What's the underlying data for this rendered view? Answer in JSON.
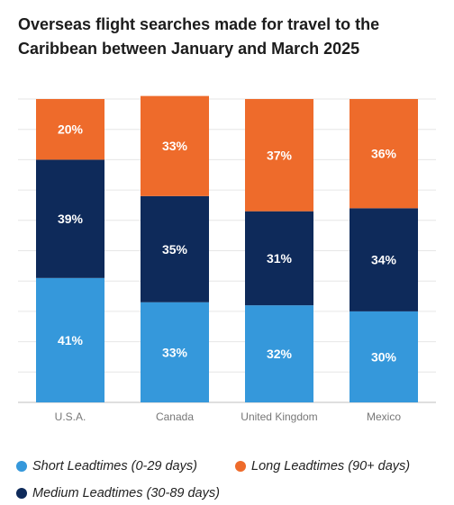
{
  "title": "Overseas flight searches made for travel to the Caribbean between January and March 2025",
  "chart_data": {
    "type": "bar",
    "stacked": true,
    "categories": [
      "U.S.A.",
      "Canada",
      "United Kingdom",
      "Mexico"
    ],
    "series": [
      {
        "name": "Short Leadtimes (0-29 days)",
        "color": "#3598db",
        "values": [
          41,
          33,
          32,
          30
        ]
      },
      {
        "name": "Medium Leadtimes (30-89 days)",
        "color": "#0e2a5a",
        "values": [
          39,
          35,
          31,
          34
        ]
      },
      {
        "name": "Long Leadtimes (90+ days)",
        "color": "#ee6b2b",
        "values": [
          20,
          33,
          37,
          36
        ]
      }
    ],
    "value_suffix": "%",
    "ylim": [
      0,
      100
    ],
    "grid": true,
    "legend_position": "bottom"
  },
  "legend": [
    {
      "label": "Short Leadtimes (0-29 days)",
      "color": "#3598db"
    },
    {
      "label": "Long Leadtimes (90+ days)",
      "color": "#ee6b2b"
    },
    {
      "label": "Medium Leadtimes (30-89 days)",
      "color": "#0e2a5a"
    }
  ]
}
